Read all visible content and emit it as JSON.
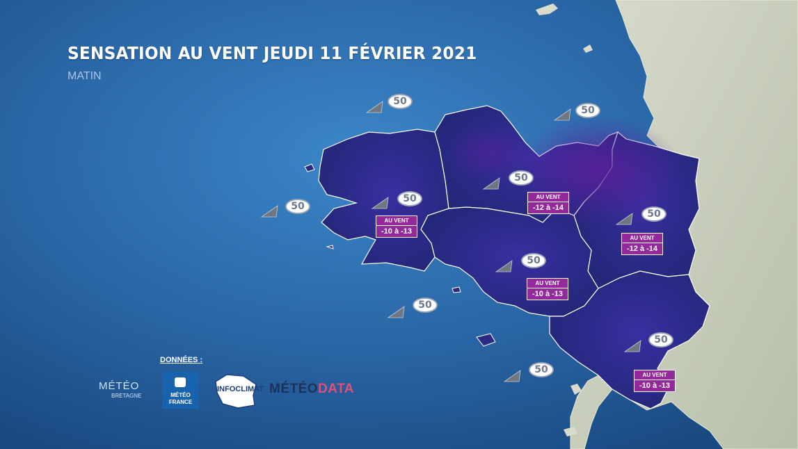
{
  "title": "SENSATION AU VENT JEUDI 11 FÉVRIER 2021",
  "subtitle": "MATIN",
  "wind_labels": [
    "50",
    "50",
    "50",
    "50",
    "50",
    "50",
    "50",
    "50",
    "50",
    "50"
  ],
  "chips": [
    {
      "label": "AU VENT",
      "value": "-10 à -13"
    },
    {
      "label": "AU VENT",
      "value": "-12 à -14"
    },
    {
      "label": "AU VENT",
      "value": "-12 à -14"
    },
    {
      "label": "AU VENT",
      "value": "-10 à -13"
    },
    {
      "label": "AU VENT",
      "value": "-10 à -13"
    }
  ],
  "colors": {
    "sea": "#2d6fb3",
    "land": "#cfd6c3",
    "region": "#2a2a86",
    "chip": "#93299a"
  },
  "credits": {
    "label": "DONNÉES :",
    "meteo_bretagne": "MÉTÉO",
    "meteo_bretagne_sub": "BRETAGNE",
    "meteo_france": "MÉTÉO FRANCE",
    "infoclimat": "INFOCLIMAT",
    "meteodata_a": "MÉTÉO",
    "meteodata_b": "DATA"
  }
}
